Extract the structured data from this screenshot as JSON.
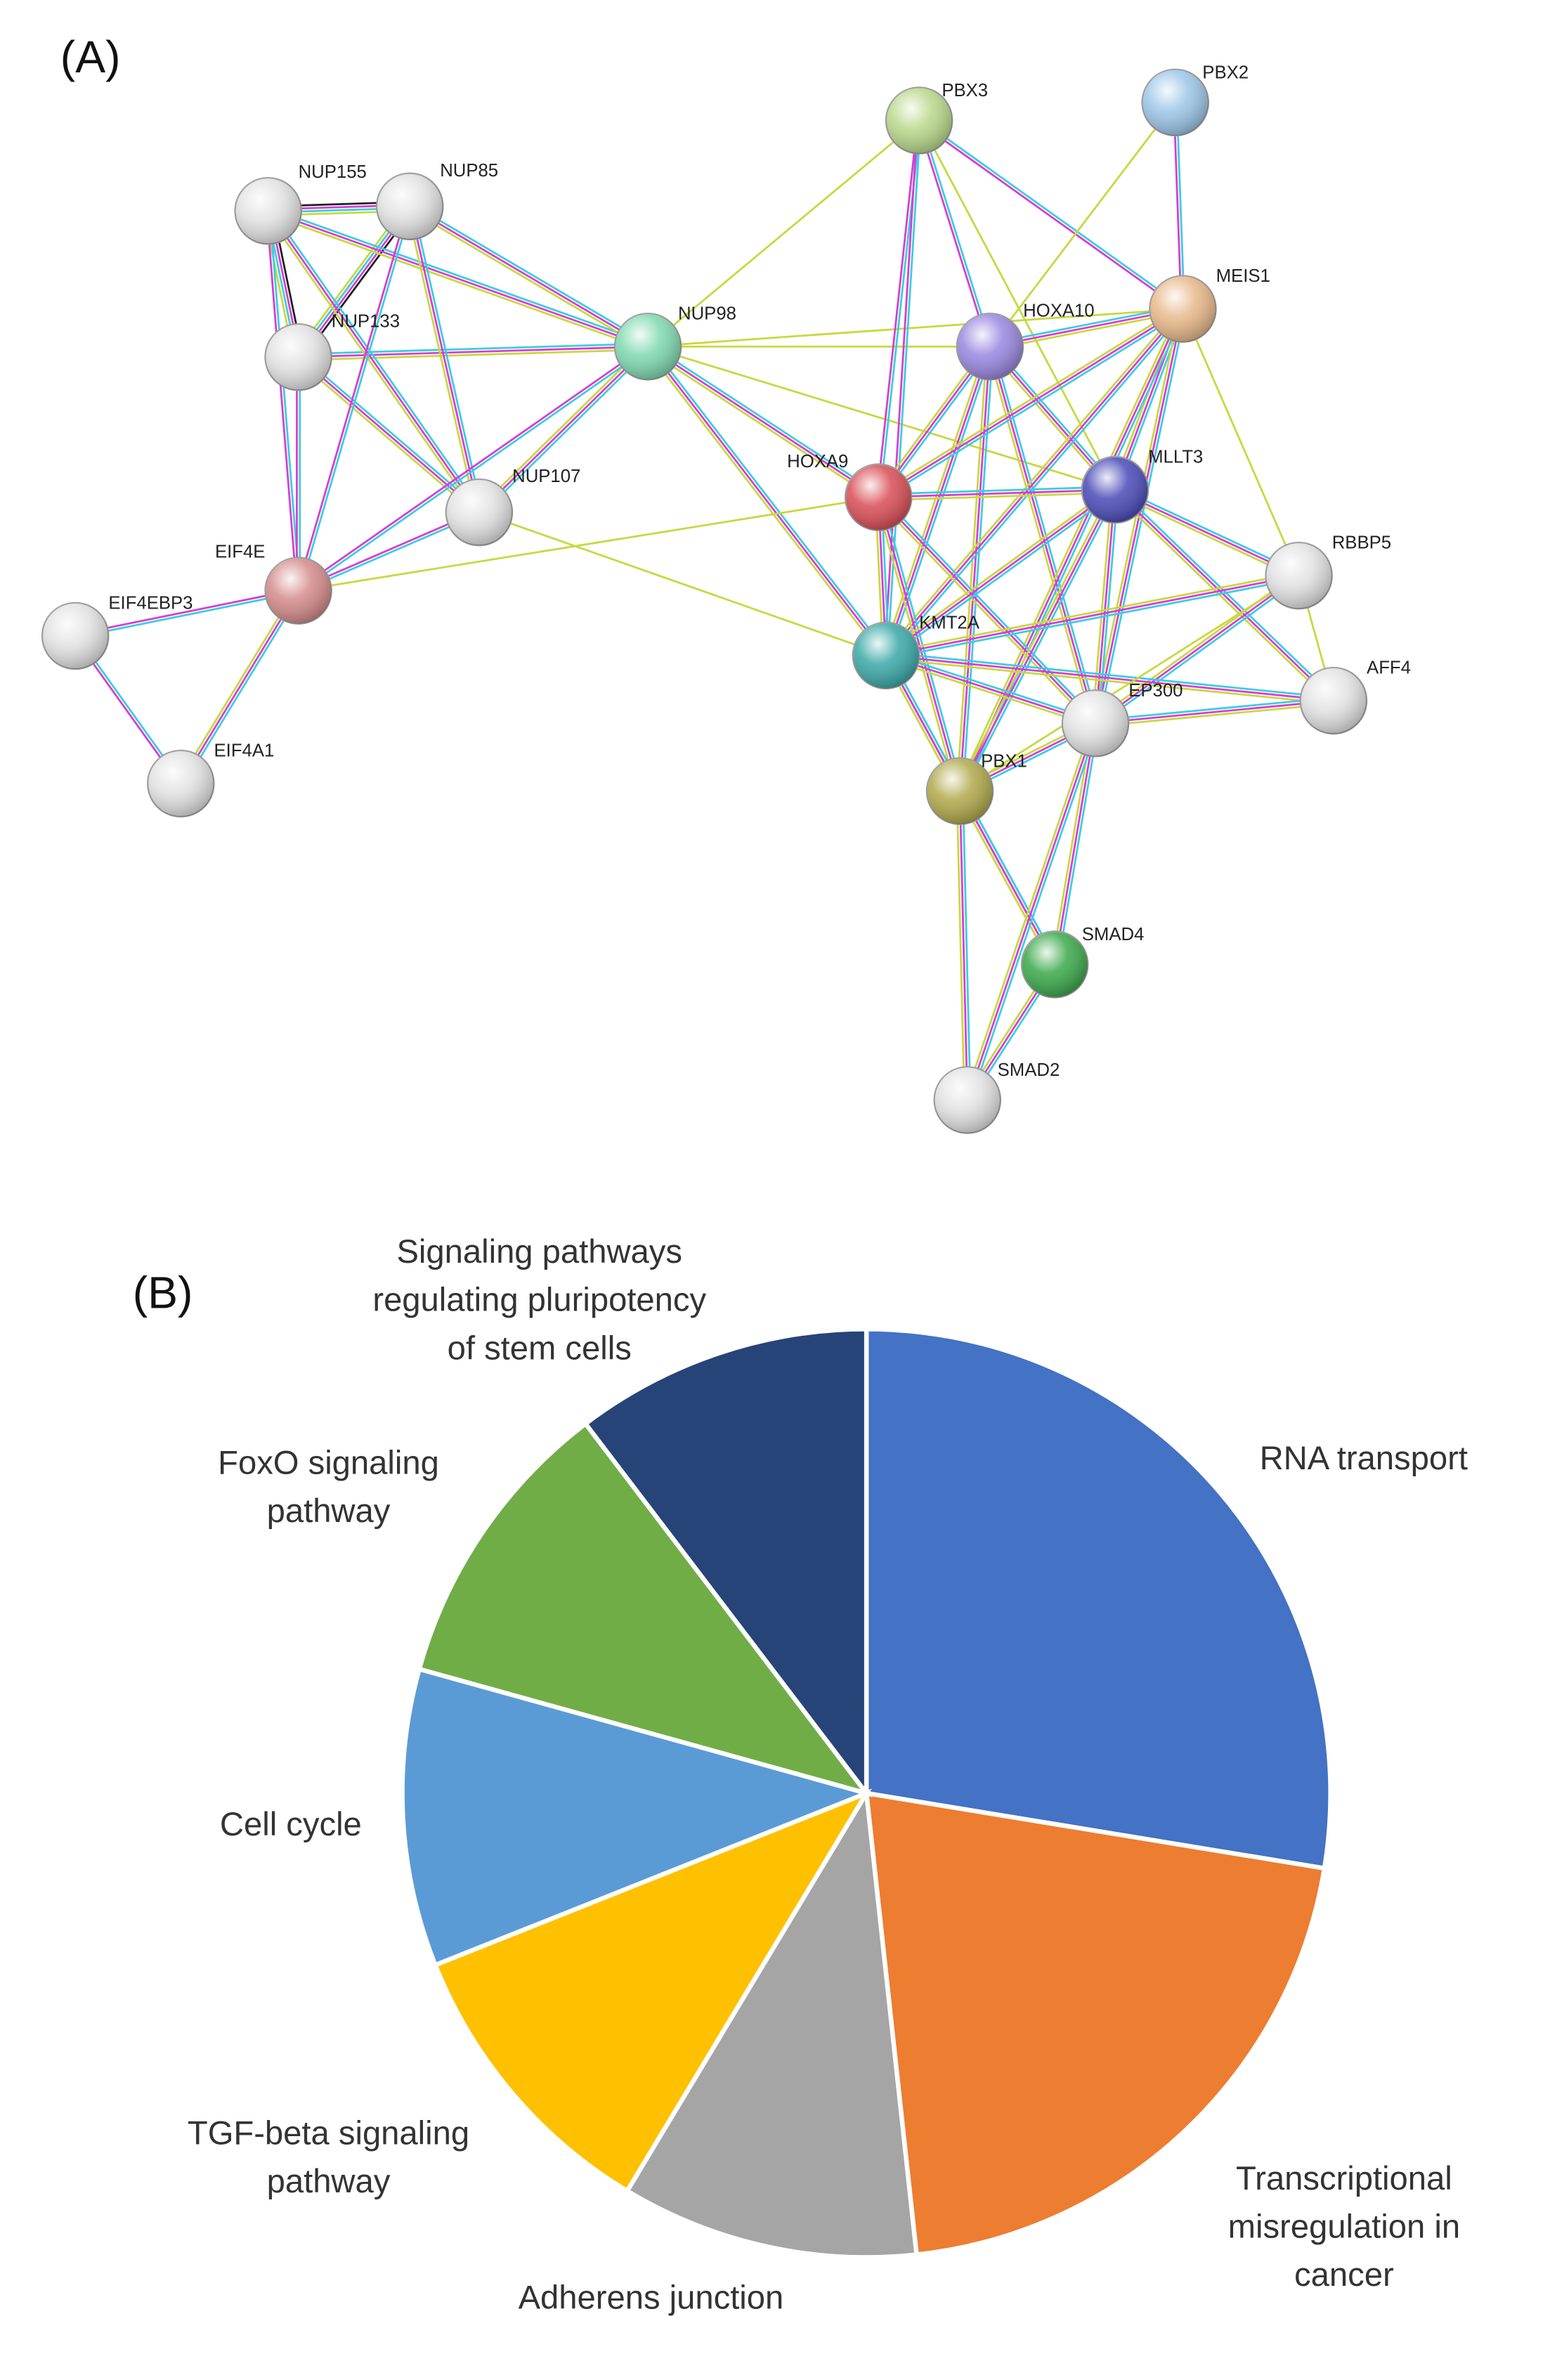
{
  "panel_a": {
    "label": "(A)",
    "nodes": [
      "PBX3",
      "PBX2",
      "NUP155",
      "NUP85",
      "NUP133",
      "NUP98",
      "HOXA10",
      "MEIS1",
      "HOXA9",
      "MLLT3",
      "NUP107",
      "EIF4E",
      "RBBP5",
      "EIF4EBP3",
      "KMT2A",
      "AFF4",
      "EP300",
      "PBX1",
      "EIF4A1",
      "SMAD4",
      "SMAD2"
    ]
  },
  "chart_data": {
    "type": "pie",
    "label": "(B)",
    "categories": [
      "RNA transport",
      "Transcriptional misregulation in cancer",
      "Adherens junction",
      "TGF-beta signaling pathway",
      "Cell cycle",
      "FoxO signaling pathway",
      "Signaling pathways regulating pluripotency of stem cells"
    ],
    "values": [
      8,
      6,
      3,
      3,
      3,
      3,
      3
    ],
    "colors": [
      "#4472c4",
      "#ed7d31",
      "#a5a5a5",
      "#ffc000",
      "#5b9bd5",
      "#70ad47",
      "#264478"
    ]
  }
}
